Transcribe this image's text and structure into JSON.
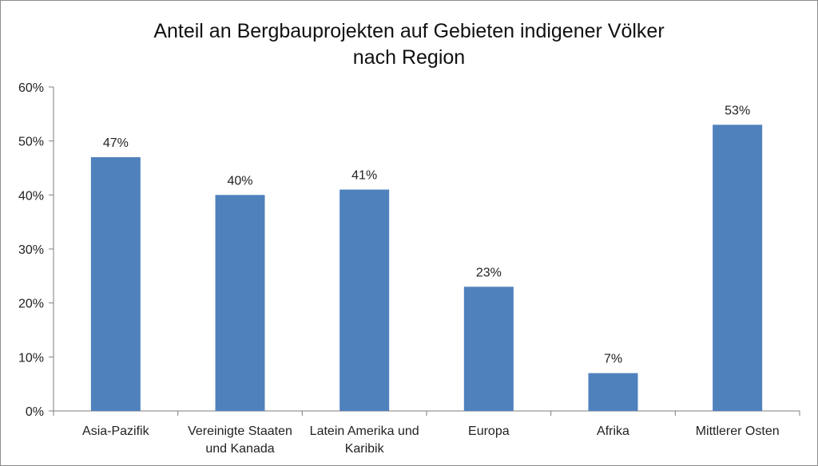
{
  "chart_data": {
    "type": "bar",
    "title_lines": [
      "Anteil an Bergbauprojekten auf Gebieten indigener Völker",
      "nach Region"
    ],
    "categories": [
      [
        "Asia-Pazifik"
      ],
      [
        "Vereinigte Staaten",
        "und Kanada"
      ],
      [
        "Latein Amerika und",
        "Karibik"
      ],
      [
        "Europa"
      ],
      [
        "Afrika"
      ],
      [
        "Mittlerer Osten"
      ]
    ],
    "values": [
      47,
      40,
      41,
      23,
      7,
      53
    ],
    "data_labels": [
      "47%",
      "40%",
      "41%",
      "23%",
      "7%",
      "53%"
    ],
    "y_ticks": [
      0,
      10,
      20,
      30,
      40,
      50,
      60
    ],
    "y_tick_labels": [
      "0%",
      "10%",
      "20%",
      "30%",
      "40%",
      "50%",
      "60%"
    ],
    "ylim": [
      0,
      60
    ],
    "bar_color": "#4f81bd",
    "grid": false,
    "legend": "none"
  }
}
